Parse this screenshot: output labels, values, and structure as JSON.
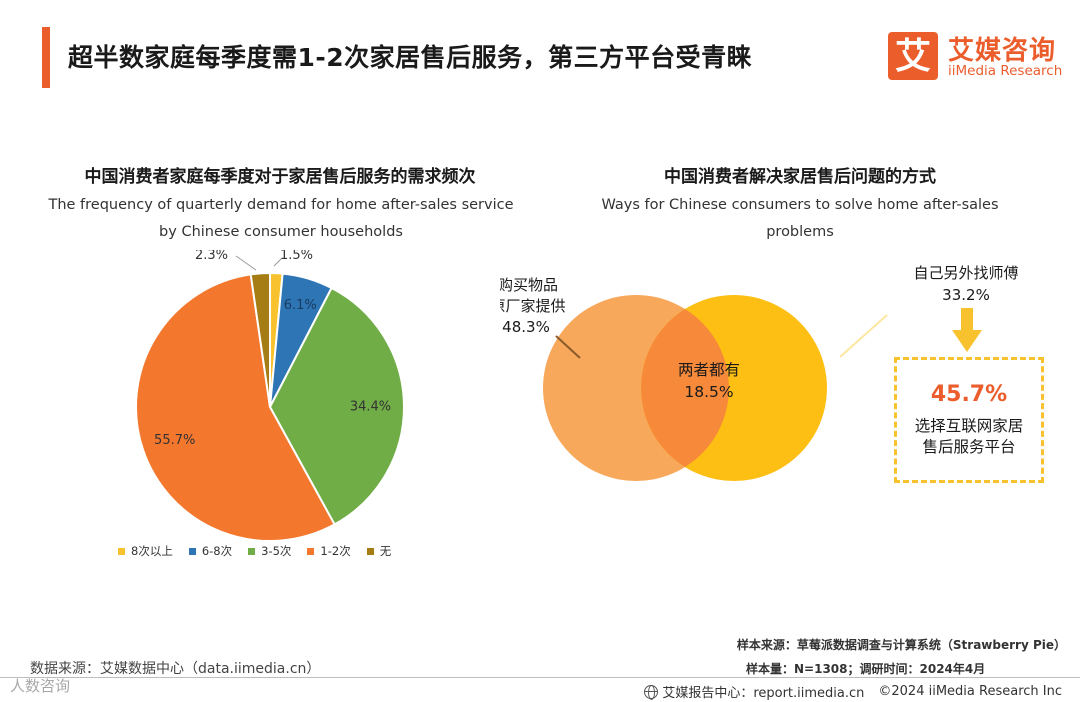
{
  "header": {
    "title": "超半数家庭每季度需1-2次家居售后服务，第三方平台受青睐",
    "logo_icon": "艾",
    "logo_cn": "艾媒咨询",
    "logo_en": "iiMedia Research"
  },
  "colors": {
    "accent": "#ec5d2c",
    "pie_8plus": "#f7c22d",
    "pie_6_8": "#2e75b6",
    "pie_3_5": "#70ad47",
    "pie_1_2": "#f4772e",
    "pie_none": "#a67c15",
    "venn_left": "#f7a85a",
    "venn_right": "#fdbf14",
    "venn_overlap": "#f7893a"
  },
  "chart_data": [
    {
      "type": "pie",
      "title": "中国消费者家庭每季度对于家居售后服务的需求频次",
      "subtitle": "The frequency of quarterly demand for home after-sales service by Chinese consumer households",
      "categories": [
        "8次以上",
        "6-8次",
        "3-5次",
        "1-2次",
        "无"
      ],
      "values": [
        1.5,
        6.1,
        34.4,
        55.7,
        2.3
      ],
      "labels": [
        "1.5%",
        "6.1%",
        "34.4%",
        "55.7%",
        "2.3%"
      ],
      "legend_position": "bottom"
    },
    {
      "type": "venn",
      "title": "中国消费者解决家居售后问题的方式",
      "subtitle": "Ways for Chinese consumers to solve home after-sales problems",
      "sets": [
        {
          "name": "购买物品原厂家提供",
          "name_lines": [
            "购买物品",
            "原厂家提供"
          ],
          "value": 48.3,
          "label": "48.3%"
        },
        {
          "name": "自己另外找师傅",
          "value": 33.2,
          "label": "33.2%"
        }
      ],
      "overlap": {
        "name": "两者都有",
        "value": 18.5,
        "label": "18.5%"
      },
      "callout": {
        "value": 45.7,
        "label": "45.7%",
        "name_lines": [
          "选择互联网家居",
          "售后服务平台"
        ]
      }
    }
  ],
  "footer": {
    "source": "数据来源：艾媒数据中心（data.iimedia.cn）",
    "watermark": "人数咨询",
    "sample_source": "样本来源：草莓派数据调查与计算系统（Strawberry Pie）",
    "sample_size": "样本量：N=1308；调研时间：2024年4月",
    "report_center": "艾媒报告中心：report.iimedia.cn",
    "copyright": "©2024  iiMedia Research  Inc"
  }
}
